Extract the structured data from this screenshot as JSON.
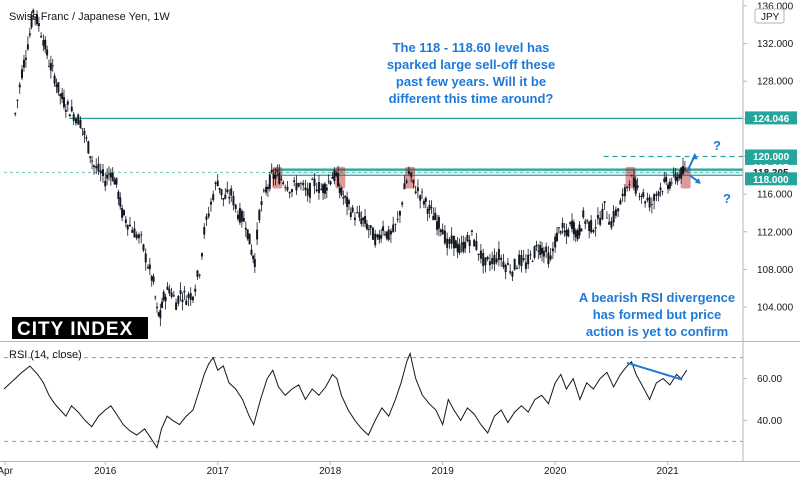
{
  "chart_data": [
    {
      "type": "candlestick",
      "title": "Swiss Franc / Japanese Yen, 1W",
      "currency_label": "JPY",
      "ylim": [
        100.5,
        136.2
      ],
      "y_ticks": [
        104,
        108,
        112,
        116,
        120,
        124,
        128,
        132,
        136
      ],
      "x_labels": [
        "Apr",
        "2016",
        "2017",
        "2018",
        "2019",
        "2020",
        "2021"
      ],
      "series_points": [
        [
          2015.2,
          124.5
        ],
        [
          2015.26,
          129
        ],
        [
          2015.33,
          133
        ],
        [
          2015.36,
          135.5
        ],
        [
          2015.41,
          134
        ],
        [
          2015.45,
          132.5
        ],
        [
          2015.5,
          130
        ],
        [
          2015.55,
          128.5
        ],
        [
          2015.6,
          126.5
        ],
        [
          2015.65,
          125.5
        ],
        [
          2015.72,
          124.5
        ],
        [
          2015.78,
          123.7
        ],
        [
          2015.85,
          121
        ],
        [
          2015.9,
          119
        ],
        [
          2015.96,
          118.2
        ],
        [
          2016.0,
          117.5
        ],
        [
          2016.05,
          118.5
        ],
        [
          2016.1,
          117
        ],
        [
          2016.15,
          114
        ],
        [
          2016.2,
          113
        ],
        [
          2016.26,
          112
        ],
        [
          2016.32,
          111
        ],
        [
          2016.38,
          108.5
        ],
        [
          2016.43,
          106.5
        ],
        [
          2016.46,
          103.5
        ],
        [
          2016.49,
          103
        ],
        [
          2016.52,
          105
        ],
        [
          2016.57,
          106
        ],
        [
          2016.63,
          104.5
        ],
        [
          2016.67,
          105.5
        ],
        [
          2016.72,
          105
        ],
        [
          2016.78,
          105.5
        ],
        [
          2016.84,
          108
        ],
        [
          2016.88,
          112
        ],
        [
          2016.92,
          114
        ],
        [
          2016.96,
          116
        ],
        [
          2017.0,
          117.5
        ],
        [
          2017.05,
          115.5
        ],
        [
          2017.12,
          116
        ],
        [
          2017.18,
          114
        ],
        [
          2017.25,
          113
        ],
        [
          2017.3,
          110
        ],
        [
          2017.33,
          109
        ],
        [
          2017.37,
          114
        ],
        [
          2017.43,
          116.5
        ],
        [
          2017.48,
          117.8
        ],
        [
          2017.53,
          118
        ],
        [
          2017.6,
          117.3
        ],
        [
          2017.66,
          116.5
        ],
        [
          2017.72,
          117.2
        ],
        [
          2017.8,
          116
        ],
        [
          2017.86,
          117.2
        ],
        [
          2017.92,
          116.5
        ],
        [
          2017.97,
          117
        ],
        [
          2018.02,
          118
        ],
        [
          2018.07,
          117.5
        ],
        [
          2018.1,
          116
        ],
        [
          2018.15,
          115
        ],
        [
          2018.2,
          114
        ],
        [
          2018.26,
          113.5
        ],
        [
          2018.31,
          113
        ],
        [
          2018.36,
          112
        ],
        [
          2018.42,
          111
        ],
        [
          2018.47,
          112.5
        ],
        [
          2018.52,
          111.5
        ],
        [
          2018.56,
          112
        ],
        [
          2018.6,
          113
        ],
        [
          2018.66,
          116.5
        ],
        [
          2018.7,
          118.2
        ],
        [
          2018.74,
          117
        ],
        [
          2018.8,
          116
        ],
        [
          2018.85,
          115
        ],
        [
          2018.9,
          114
        ],
        [
          2018.95,
          113
        ],
        [
          2019.0,
          112.5
        ],
        [
          2019.04,
          110.5
        ],
        [
          2019.1,
          111
        ],
        [
          2019.15,
          110
        ],
        [
          2019.2,
          110.8
        ],
        [
          2019.26,
          111.5
        ],
        [
          2019.32,
          110
        ],
        [
          2019.38,
          108.5
        ],
        [
          2019.44,
          109
        ],
        [
          2019.5,
          109.5
        ],
        [
          2019.56,
          108.5
        ],
        [
          2019.62,
          108
        ],
        [
          2019.68,
          109
        ],
        [
          2019.74,
          108.5
        ],
        [
          2019.8,
          109.5
        ],
        [
          2019.85,
          110.5
        ],
        [
          2019.9,
          110
        ],
        [
          2019.96,
          109
        ],
        [
          2020.0,
          111
        ],
        [
          2020.05,
          112.5
        ],
        [
          2020.1,
          111.5
        ],
        [
          2020.15,
          113
        ],
        [
          2020.2,
          111.5
        ],
        [
          2020.25,
          113.5
        ],
        [
          2020.32,
          112.5
        ],
        [
          2020.38,
          113
        ],
        [
          2020.44,
          114.5
        ],
        [
          2020.5,
          113
        ],
        [
          2020.56,
          114.5
        ],
        [
          2020.62,
          116
        ],
        [
          2020.66,
          117.8
        ],
        [
          2020.7,
          117
        ],
        [
          2020.75,
          116.5
        ],
        [
          2020.8,
          115.5
        ],
        [
          2020.86,
          115
        ],
        [
          2020.92,
          116.5
        ],
        [
          2020.97,
          117
        ],
        [
          2021.02,
          117.2
        ],
        [
          2021.07,
          117.8
        ],
        [
          2021.12,
          118.2
        ],
        [
          2021.17,
          118.3
        ]
      ],
      "levels": [
        {
          "value": 124.046,
          "label": "124.046",
          "style": "solid",
          "color": "#26a69a",
          "x_start": 2015.68
        },
        {
          "value": 120.0,
          "label": "120.000",
          "style": "dashed",
          "color": "#26a69a",
          "x_start": 2020.43
        },
        {
          "value": 118.605,
          "label": "118.605",
          "style": "thick",
          "color": "#26a69a",
          "x_start": 2017.5
        },
        {
          "value": 118.305,
          "label": "118.305",
          "style": "dotted",
          "color": "#26a69a",
          "x_start": 2015.1
        },
        {
          "value": 118.0,
          "label": "118.000",
          "style": "solid",
          "color": "#26a69a",
          "x_start": 2017.5
        }
      ],
      "reaction_points": [
        2017.53,
        2018.09,
        2018.71,
        2020.67,
        2021.16
      ],
      "annotations": [
        {
          "text": [
            "The 118 - 118.60 level has",
            "sparked large sell-off these",
            "past few years. Will it be",
            "different this time around?"
          ]
        },
        {
          "text": [
            "A bearish RSI divergence",
            "has formed but price",
            "action is yet to confirm"
          ]
        }
      ],
      "question_marks": [
        "?",
        "?"
      ],
      "logo": "CITY INDEX"
    },
    {
      "type": "line",
      "title": "RSI (14, close)",
      "ylim": [
        23,
        77
      ],
      "y_ticks": [
        40,
        60
      ],
      "bands": [
        70,
        30
      ],
      "values": [
        [
          2015.1,
          55
        ],
        [
          2015.2,
          60
        ],
        [
          2015.26,
          63
        ],
        [
          2015.33,
          66
        ],
        [
          2015.4,
          62
        ],
        [
          2015.45,
          58
        ],
        [
          2015.5,
          52
        ],
        [
          2015.55,
          48
        ],
        [
          2015.6,
          45
        ],
        [
          2015.65,
          42
        ],
        [
          2015.7,
          47
        ],
        [
          2015.76,
          44
        ],
        [
          2015.82,
          40
        ],
        [
          2015.88,
          37
        ],
        [
          2015.94,
          42
        ],
        [
          2016.0,
          45
        ],
        [
          2016.05,
          47
        ],
        [
          2016.1,
          43
        ],
        [
          2016.16,
          38
        ],
        [
          2016.22,
          35
        ],
        [
          2016.28,
          33
        ],
        [
          2016.35,
          36
        ],
        [
          2016.4,
          32
        ],
        [
          2016.46,
          27
        ],
        [
          2016.5,
          36
        ],
        [
          2016.55,
          42
        ],
        [
          2016.6,
          40
        ],
        [
          2016.66,
          38
        ],
        [
          2016.72,
          42
        ],
        [
          2016.78,
          45
        ],
        [
          2016.84,
          55
        ],
        [
          2016.88,
          62
        ],
        [
          2016.92,
          67
        ],
        [
          2016.96,
          70
        ],
        [
          2017.0,
          64
        ],
        [
          2017.05,
          66
        ],
        [
          2017.1,
          58
        ],
        [
          2017.16,
          55
        ],
        [
          2017.22,
          50
        ],
        [
          2017.28,
          42
        ],
        [
          2017.32,
          38
        ],
        [
          2017.38,
          50
        ],
        [
          2017.44,
          60
        ],
        [
          2017.49,
          64
        ],
        [
          2017.54,
          56
        ],
        [
          2017.6,
          52
        ],
        [
          2017.66,
          55
        ],
        [
          2017.72,
          57
        ],
        [
          2017.78,
          50
        ],
        [
          2017.84,
          55
        ],
        [
          2017.9,
          52
        ],
        [
          2017.96,
          56
        ],
        [
          2018.02,
          62
        ],
        [
          2018.06,
          60
        ],
        [
          2018.1,
          52
        ],
        [
          2018.16,
          45
        ],
        [
          2018.22,
          40
        ],
        [
          2018.28,
          36
        ],
        [
          2018.34,
          33
        ],
        [
          2018.4,
          40
        ],
        [
          2018.46,
          46
        ],
        [
          2018.52,
          42
        ],
        [
          2018.58,
          50
        ],
        [
          2018.63,
          58
        ],
        [
          2018.68,
          68
        ],
        [
          2018.71,
          72
        ],
        [
          2018.76,
          60
        ],
        [
          2018.82,
          52
        ],
        [
          2018.88,
          48
        ],
        [
          2018.94,
          45
        ],
        [
          2019.0,
          38
        ],
        [
          2019.05,
          50
        ],
        [
          2019.1,
          45
        ],
        [
          2019.16,
          40
        ],
        [
          2019.22,
          46
        ],
        [
          2019.28,
          43
        ],
        [
          2019.34,
          38
        ],
        [
          2019.4,
          34
        ],
        [
          2019.46,
          42
        ],
        [
          2019.52,
          45
        ],
        [
          2019.58,
          39
        ],
        [
          2019.64,
          44
        ],
        [
          2019.7,
          47
        ],
        [
          2019.76,
          44
        ],
        [
          2019.82,
          50
        ],
        [
          2019.88,
          52
        ],
        [
          2019.94,
          48
        ],
        [
          2020.0,
          58
        ],
        [
          2020.05,
          62
        ],
        [
          2020.1,
          55
        ],
        [
          2020.16,
          60
        ],
        [
          2020.22,
          50
        ],
        [
          2020.28,
          58
        ],
        [
          2020.34,
          55
        ],
        [
          2020.4,
          60
        ],
        [
          2020.46,
          63
        ],
        [
          2020.52,
          56
        ],
        [
          2020.58,
          62
        ],
        [
          2020.64,
          66
        ],
        [
          2020.68,
          68
        ],
        [
          2020.72,
          62
        ],
        [
          2020.78,
          56
        ],
        [
          2020.84,
          50
        ],
        [
          2020.9,
          58
        ],
        [
          2020.96,
          60
        ],
        [
          2021.02,
          57
        ],
        [
          2021.08,
          62
        ],
        [
          2021.12,
          60
        ],
        [
          2021.17,
          64
        ]
      ],
      "trendline": [
        [
          2020.64,
          67.5
        ],
        [
          2021.13,
          59.5
        ]
      ]
    }
  ]
}
